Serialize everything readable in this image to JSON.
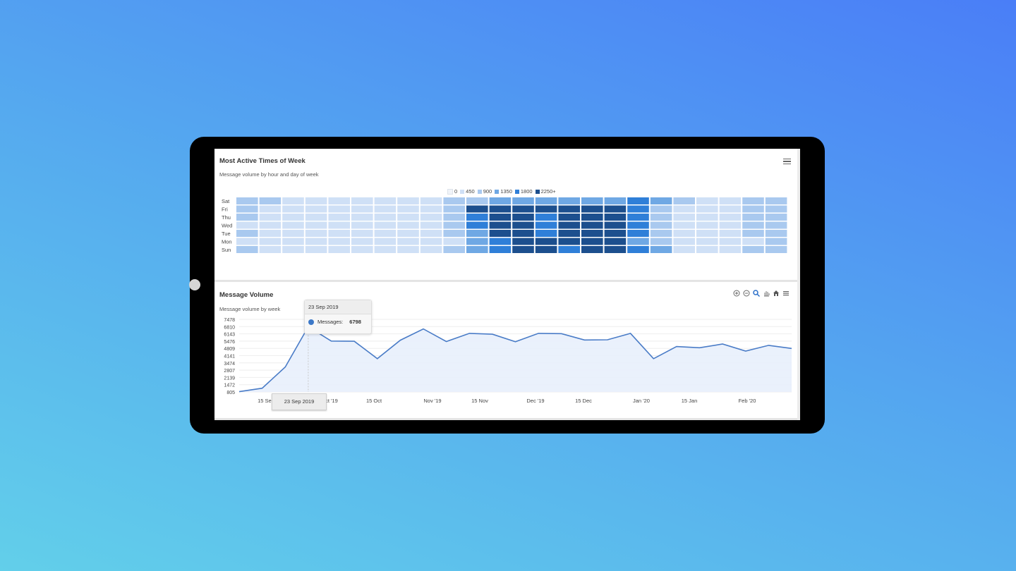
{
  "colors": {
    "accent": "#4a7cc7",
    "heat": [
      "#e3ecf8",
      "#cfe0f6",
      "#a9c9ef",
      "#6fa8e4",
      "#2f7fd8",
      "#1c4f8e"
    ]
  },
  "heatmap_panel": {
    "title": "Most Active Times of Week",
    "subtitle": "Message volume by hour and day of week",
    "menu_icon": "hamburger-menu-icon",
    "legend": [
      "0",
      "450",
      "900",
      "1350",
      "1800",
      "2250+"
    ]
  },
  "volume_panel": {
    "title": "Message Volume",
    "subtitle": "Message volume by week",
    "toolbar": [
      "zoom-in-icon",
      "zoom-out-icon",
      "selection-zoom-icon",
      "pan-hand-icon",
      "reset-home-icon",
      "hamburger-menu-icon"
    ],
    "tooltip": {
      "date": "23 Sep 2019",
      "label": "Messages:",
      "value": "6798"
    },
    "x_tooltip": "23 Sep 2019"
  },
  "chart_data": [
    {
      "type": "heatmap",
      "title": "Most Active Times of Week",
      "subtitle": "Message volume by hour and day of week",
      "rows": [
        "Sat",
        "Fri",
        "Thu",
        "Wed",
        "Tue",
        "Mon",
        "Sun"
      ],
      "columns": 24,
      "legend": [
        "0",
        "450",
        "900",
        "1350",
        "1800",
        "2250+"
      ],
      "levels": [
        [
          2,
          2,
          1,
          1,
          1,
          1,
          1,
          1,
          1,
          2,
          2,
          3,
          3,
          3,
          3,
          3,
          3,
          4,
          3,
          2,
          1,
          1,
          2,
          2
        ],
        [
          2,
          1,
          1,
          1,
          1,
          1,
          1,
          1,
          1,
          2,
          5,
          5,
          5,
          5,
          5,
          5,
          5,
          4,
          2,
          1,
          1,
          1,
          2,
          2
        ],
        [
          2,
          1,
          1,
          1,
          1,
          1,
          1,
          1,
          1,
          2,
          4,
          5,
          5,
          4,
          5,
          5,
          5,
          4,
          2,
          1,
          1,
          1,
          2,
          2
        ],
        [
          1,
          1,
          1,
          1,
          1,
          1,
          1,
          1,
          1,
          2,
          4,
          5,
          5,
          4,
          5,
          5,
          5,
          4,
          2,
          1,
          1,
          1,
          2,
          2
        ],
        [
          2,
          1,
          1,
          1,
          1,
          1,
          1,
          1,
          1,
          2,
          3,
          5,
          5,
          4,
          5,
          5,
          5,
          4,
          2,
          1,
          1,
          1,
          2,
          2
        ],
        [
          1,
          1,
          1,
          1,
          1,
          1,
          1,
          1,
          1,
          1,
          3,
          4,
          5,
          5,
          5,
          5,
          5,
          3,
          2,
          1,
          1,
          1,
          1,
          2
        ],
        [
          2,
          1,
          1,
          1,
          1,
          1,
          1,
          1,
          1,
          2,
          3,
          4,
          5,
          5,
          4,
          5,
          5,
          4,
          3,
          1,
          1,
          1,
          2,
          2
        ]
      ]
    },
    {
      "type": "area",
      "title": "Message Volume",
      "subtitle": "Message volume by week",
      "x_tick_labels": [
        "15 Sep",
        "Oct '19",
        "15 Oct",
        "Nov '19",
        "15 Nov",
        "Dec '19",
        "15 Dec",
        "Jan '20",
        "15 Jan",
        "Feb '20"
      ],
      "y_tick_labels": [
        "7478",
        "6810",
        "6143",
        "5476",
        "4809",
        "4141",
        "3474",
        "2807",
        "2139",
        "1472",
        "805"
      ],
      "ylim": [
        805,
        7478
      ],
      "series": [
        {
          "name": "Messages",
          "x": [
            "2019-09-02",
            "2019-09-09",
            "2019-09-16",
            "2019-09-23",
            "2019-09-30",
            "2019-10-07",
            "2019-10-14",
            "2019-10-21",
            "2019-10-28",
            "2019-11-04",
            "2019-11-11",
            "2019-11-18",
            "2019-11-25",
            "2019-12-02",
            "2019-12-09",
            "2019-12-16",
            "2019-12-23",
            "2019-12-30",
            "2020-01-06",
            "2020-01-13",
            "2020-01-20",
            "2020-01-27",
            "2020-02-03",
            "2020-02-10",
            "2020-02-17"
          ],
          "values": [
            830,
            1150,
            3100,
            6798,
            5480,
            5460,
            3860,
            5560,
            6600,
            5440,
            6190,
            6110,
            5420,
            6190,
            6160,
            5580,
            5600,
            6190,
            3860,
            4980,
            4870,
            5210,
            4560,
            5090,
            4800
          ]
        }
      ],
      "hover_point": {
        "x": "23 Sep 2019",
        "label": "Messages:",
        "value": 6798
      }
    }
  ]
}
